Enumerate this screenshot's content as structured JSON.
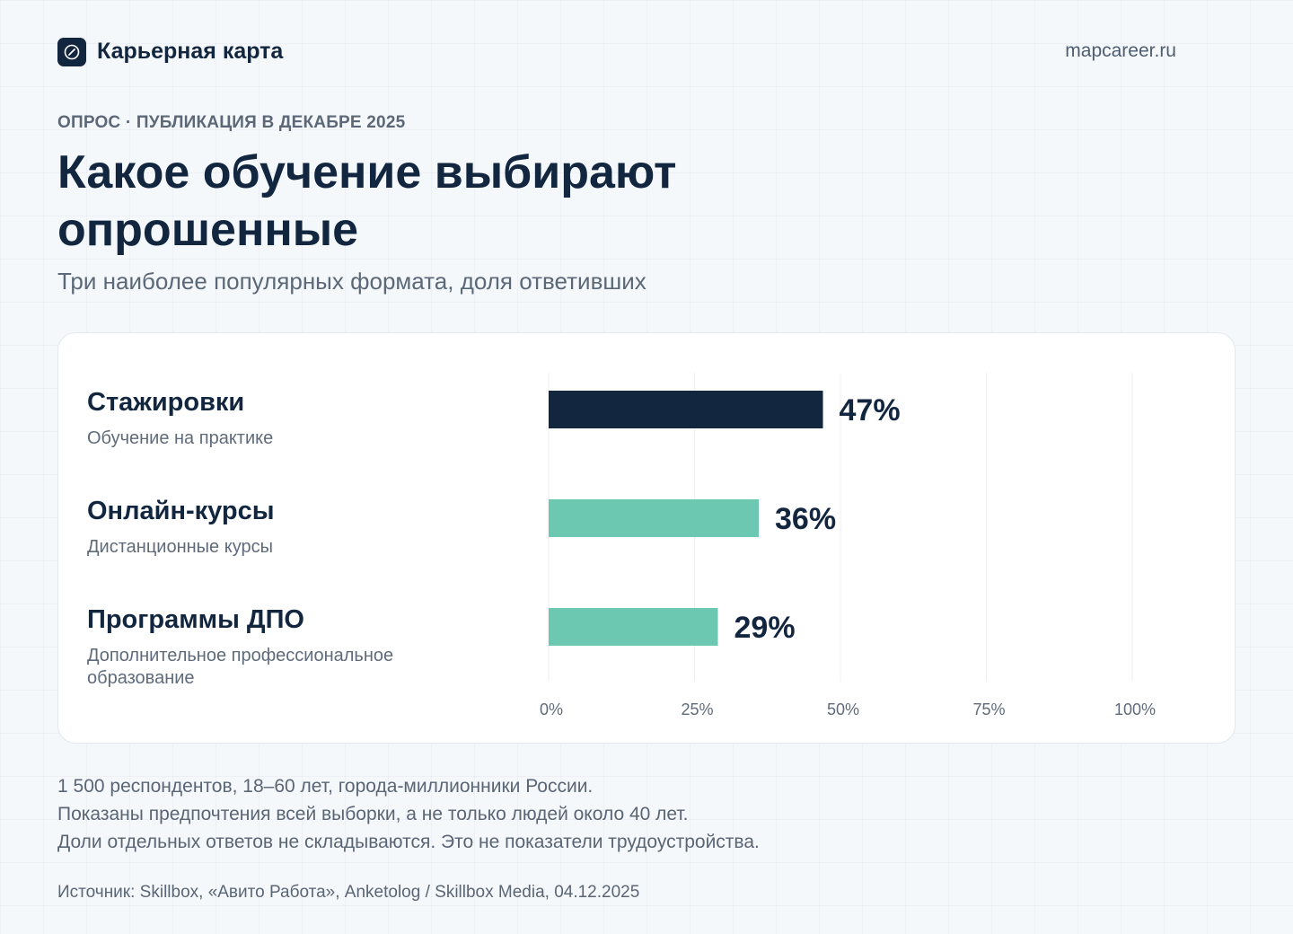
{
  "header": {
    "brand": "Карьерная карта",
    "site": "mapcareer.ru",
    "logo_icon": "compass-icon"
  },
  "eyebrow": "ОПРОС · ПУБЛИКАЦИЯ В ДЕКАБРЕ 2025",
  "title": "Какое обучение выбирают опрошенные",
  "subtitle": "Три наиболее популярных формата, доля ответивших",
  "chart_data": {
    "type": "bar",
    "orientation": "horizontal",
    "categories": [
      "Стажировки",
      "Онлайн-курсы",
      "Программы ДПО"
    ],
    "descriptions": [
      [
        "Обучение на практике"
      ],
      [
        "Дистанционные курсы"
      ],
      [
        "Дополнительное профессиональное",
        "образование"
      ]
    ],
    "values": [
      47,
      36,
      29
    ],
    "value_labels": [
      "47%",
      "36%",
      "29%"
    ],
    "colors": [
      "#12263f",
      "#6cc8b1",
      "#6cc8b1"
    ],
    "xlim": [
      0,
      100
    ],
    "xticks": [
      0,
      25,
      50,
      75,
      100
    ],
    "xtick_labels": [
      "0%",
      "25%",
      "50%",
      "75%",
      "100%"
    ],
    "grid": true,
    "legend": "none"
  },
  "notes": [
    "1 500 респондентов, 18–60 лет, города-миллионники России.",
    "Показаны предпочтения всей выборки, а не только людей около 40 лет.",
    "Доли отдельных ответов не складываются. Это не показатели трудоустройства."
  ],
  "source": "Источник: Skillbox, «Авито Работа», Anketolog / Skillbox Media, 04.12.2025"
}
